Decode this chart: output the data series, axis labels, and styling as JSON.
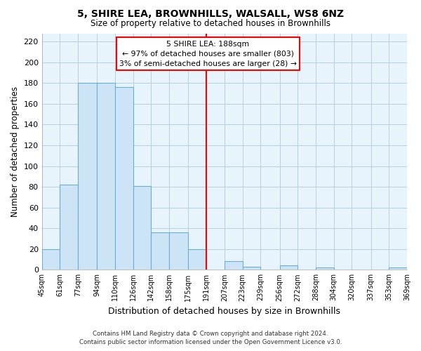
{
  "title": "5, SHIRE LEA, BROWNHILLS, WALSALL, WS8 6NZ",
  "subtitle": "Size of property relative to detached houses in Brownhills",
  "xlabel": "Distribution of detached houses by size in Brownhills",
  "ylabel": "Number of detached properties",
  "bar_edges": [
    45,
    61,
    77,
    94,
    110,
    126,
    142,
    158,
    175,
    191,
    207,
    223,
    239,
    256,
    272,
    288,
    304,
    320,
    337,
    353,
    369
  ],
  "bar_heights": [
    20,
    82,
    180,
    180,
    176,
    81,
    36,
    36,
    20,
    0,
    8,
    3,
    0,
    4,
    0,
    2,
    0,
    0,
    0,
    2,
    0
  ],
  "bar_color": "#cce4f5",
  "bar_edge_color": "#6aaed6",
  "reference_line_x": 191,
  "reference_line_color": "red",
  "ylim": [
    0,
    228
  ],
  "yticks": [
    0,
    20,
    40,
    60,
    80,
    100,
    120,
    140,
    160,
    180,
    200,
    220
  ],
  "tick_labels": [
    "45sqm",
    "61sqm",
    "77sqm",
    "94sqm",
    "110sqm",
    "126sqm",
    "142sqm",
    "158sqm",
    "175sqm",
    "191sqm",
    "207sqm",
    "223sqm",
    "239sqm",
    "256sqm",
    "272sqm",
    "288sqm",
    "304sqm",
    "320sqm",
    "337sqm",
    "353sqm",
    "369sqm"
  ],
  "annotation_title": "5 SHIRE LEA: 188sqm",
  "annotation_line1": "← 97% of detached houses are smaller (803)",
  "annotation_line2": "3% of semi-detached houses are larger (28) →",
  "footnote1": "Contains HM Land Registry data © Crown copyright and database right 2024.",
  "footnote2": "Contains public sector information licensed under the Open Government Licence v3.0.",
  "background_color": "#ffffff",
  "plot_bg_color": "#e8f4fc",
  "grid_color": "#b8cfe0"
}
